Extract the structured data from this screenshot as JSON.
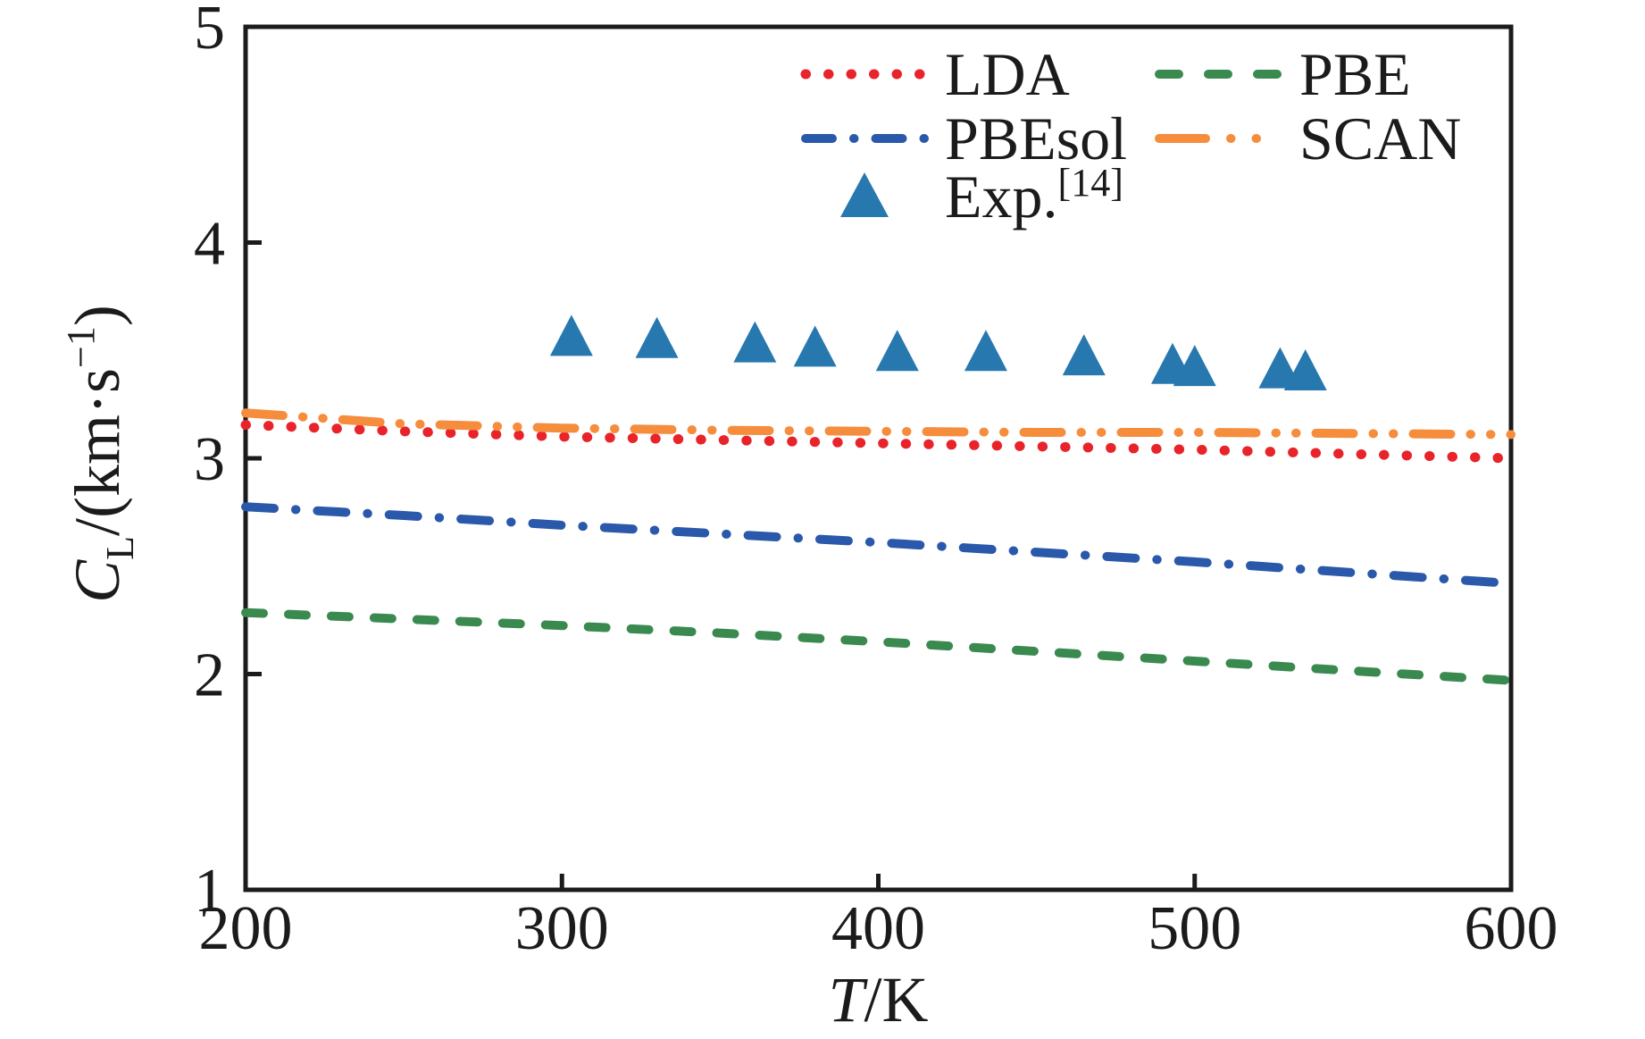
{
  "figure": {
    "background": "#ffffff",
    "axis_color": "#1b1b1b"
  },
  "chart_data": {
    "type": "line",
    "title": "",
    "xlabel": "T/K",
    "ylabel": "C_L/(km·s⁻¹)",
    "xlabel_parts": {
      "italic": "T",
      "rest": "/K"
    },
    "ylabel_parts": {
      "italic": "C",
      "sub": "L",
      "mid": "/(km·s",
      "sup": "−1",
      "end": ")"
    },
    "xlim": [
      200,
      600
    ],
    "ylim": [
      1,
      5
    ],
    "x_ticks": [
      "200",
      "300",
      "400",
      "500",
      "600"
    ],
    "x_tick_values": [
      200,
      300,
      400,
      500,
      600
    ],
    "y_ticks": [
      "1",
      "2",
      "3",
      "4",
      "5"
    ],
    "y_tick_values": [
      1,
      2,
      3,
      4,
      5
    ],
    "grid": false,
    "legend_position": "upper center, two columns inside plot",
    "series": [
      {
        "name": "LDA",
        "color": "#e8232a",
        "style": "dotted",
        "dash": "0.5 25",
        "width": 11,
        "points": [
          [
            200,
            3.155
          ],
          [
            250,
            3.125
          ],
          [
            300,
            3.1
          ],
          [
            350,
            3.085
          ],
          [
            400,
            3.07
          ],
          [
            450,
            3.055
          ],
          [
            500,
            3.04
          ],
          [
            550,
            3.02
          ],
          [
            600,
            3.0
          ]
        ]
      },
      {
        "name": "PBE",
        "color": "#3a8a50",
        "style": "dashed",
        "dash": "20 28",
        "width": 10,
        "points": [
          [
            200,
            2.285
          ],
          [
            250,
            2.255
          ],
          [
            300,
            2.225
          ],
          [
            350,
            2.19
          ],
          [
            400,
            2.15
          ],
          [
            450,
            2.105
          ],
          [
            500,
            2.06
          ],
          [
            550,
            2.015
          ],
          [
            600,
            1.97
          ]
        ]
      },
      {
        "name": "PBEsol",
        "color": "#2a58aa",
        "style": "dash-dot",
        "dash": "32 24 0.5 24",
        "width": 10,
        "points": [
          [
            200,
            2.775
          ],
          [
            250,
            2.735
          ],
          [
            300,
            2.69
          ],
          [
            350,
            2.65
          ],
          [
            400,
            2.61
          ],
          [
            450,
            2.565
          ],
          [
            500,
            2.52
          ],
          [
            550,
            2.47
          ],
          [
            600,
            2.42
          ]
        ]
      },
      {
        "name": "SCAN",
        "color": "#f58d3d",
        "style": "dash-dot-dot",
        "dash": "42 22 0.5 22 0.5 22",
        "width": 10,
        "points": [
          [
            200,
            3.21
          ],
          [
            250,
            3.16
          ],
          [
            300,
            3.14
          ],
          [
            350,
            3.13
          ],
          [
            400,
            3.125
          ],
          [
            450,
            3.12
          ],
          [
            500,
            3.12
          ],
          [
            550,
            3.115
          ],
          [
            600,
            3.11
          ]
        ]
      }
    ],
    "scatter": {
      "name": "Exp.",
      "reference_sup": "[14]",
      "marker": "triangle-up",
      "color": "#2878b0",
      "points": [
        [
          303,
          3.57
        ],
        [
          330,
          3.56
        ],
        [
          361,
          3.54
        ],
        [
          380,
          3.52
        ],
        [
          406,
          3.5
        ],
        [
          434,
          3.5
        ],
        [
          465,
          3.48
        ],
        [
          493,
          3.44
        ],
        [
          500,
          3.43
        ],
        [
          527,
          3.42
        ],
        [
          535,
          3.41
        ]
      ]
    },
    "legend": {
      "entries": [
        {
          "label": "LDA",
          "series": "LDA",
          "col": 1,
          "row": 1
        },
        {
          "label": "PBE",
          "series": "PBE",
          "col": 2,
          "row": 1
        },
        {
          "label": "PBEsol",
          "series": "PBEsol",
          "col": 1,
          "row": 2
        },
        {
          "label": "SCAN",
          "series": "SCAN",
          "col": 2,
          "row": 2
        },
        {
          "label": "Exp.",
          "sup": "[14]",
          "series": "Exp",
          "col": 1,
          "row": 3
        }
      ]
    }
  }
}
